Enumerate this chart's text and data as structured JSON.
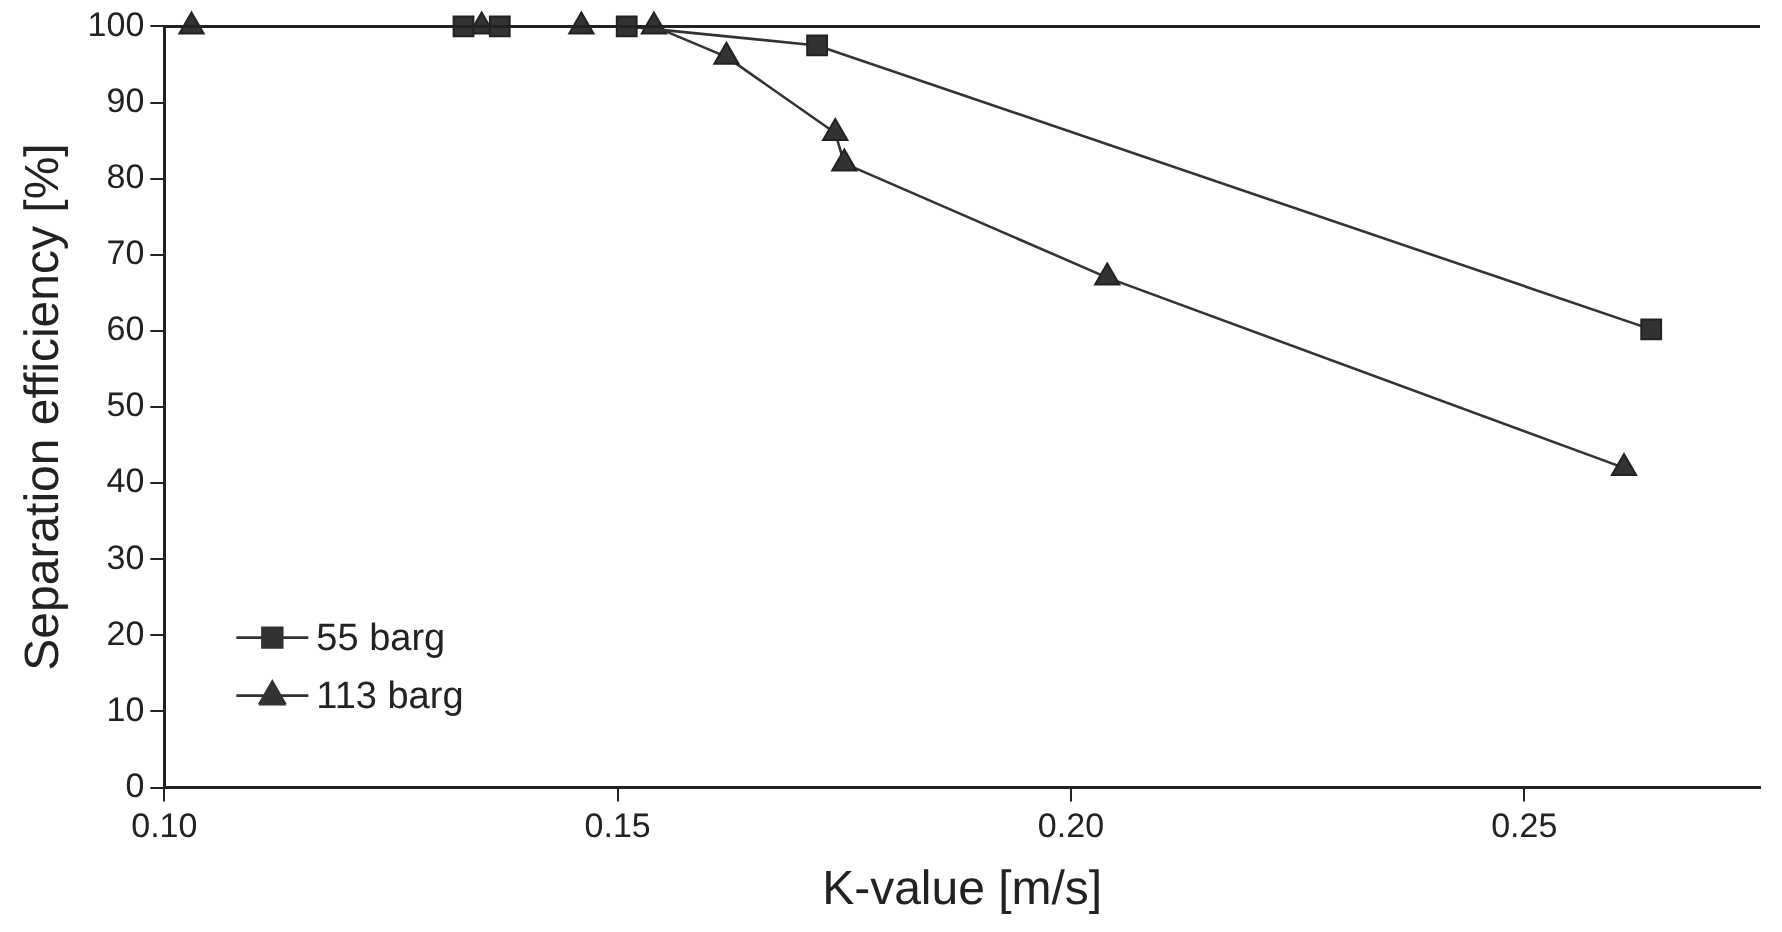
{
  "chart_data": {
    "type": "line",
    "xlabel": "K-value [m/s]",
    "ylabel": "Separation efficiency [%]",
    "xlim": [
      0.1,
      0.276
    ],
    "xticks": [
      {
        "value": 0.1,
        "label": "0.10"
      },
      {
        "value": 0.15,
        "label": "0.15"
      },
      {
        "value": 0.2,
        "label": "0.20"
      },
      {
        "value": 0.25,
        "label": "0.25"
      }
    ],
    "ylim": [
      0,
      100
    ],
    "yticks": [
      0,
      10,
      20,
      30,
      40,
      50,
      60,
      70,
      80,
      90,
      100
    ],
    "grid": false,
    "legend": "bottom left",
    "line_style": "solid",
    "series": [
      {
        "name": "55 barg",
        "color": "#333333",
        "marker": "square",
        "x": [
          0.133,
          0.137,
          0.151,
          0.172,
          0.264
        ],
        "values": [
          100,
          100,
          100,
          97.5,
          60.2
        ]
      },
      {
        "name": "113 barg",
        "color": "#333333",
        "marker": "triangle",
        "x": [
          0.103,
          0.135,
          0.146,
          0.154,
          0.162,
          0.174,
          0.175,
          0.204,
          0.261
        ],
        "values": [
          100,
          100,
          100,
          100,
          96,
          86,
          82,
          67,
          42
        ]
      }
    ]
  }
}
